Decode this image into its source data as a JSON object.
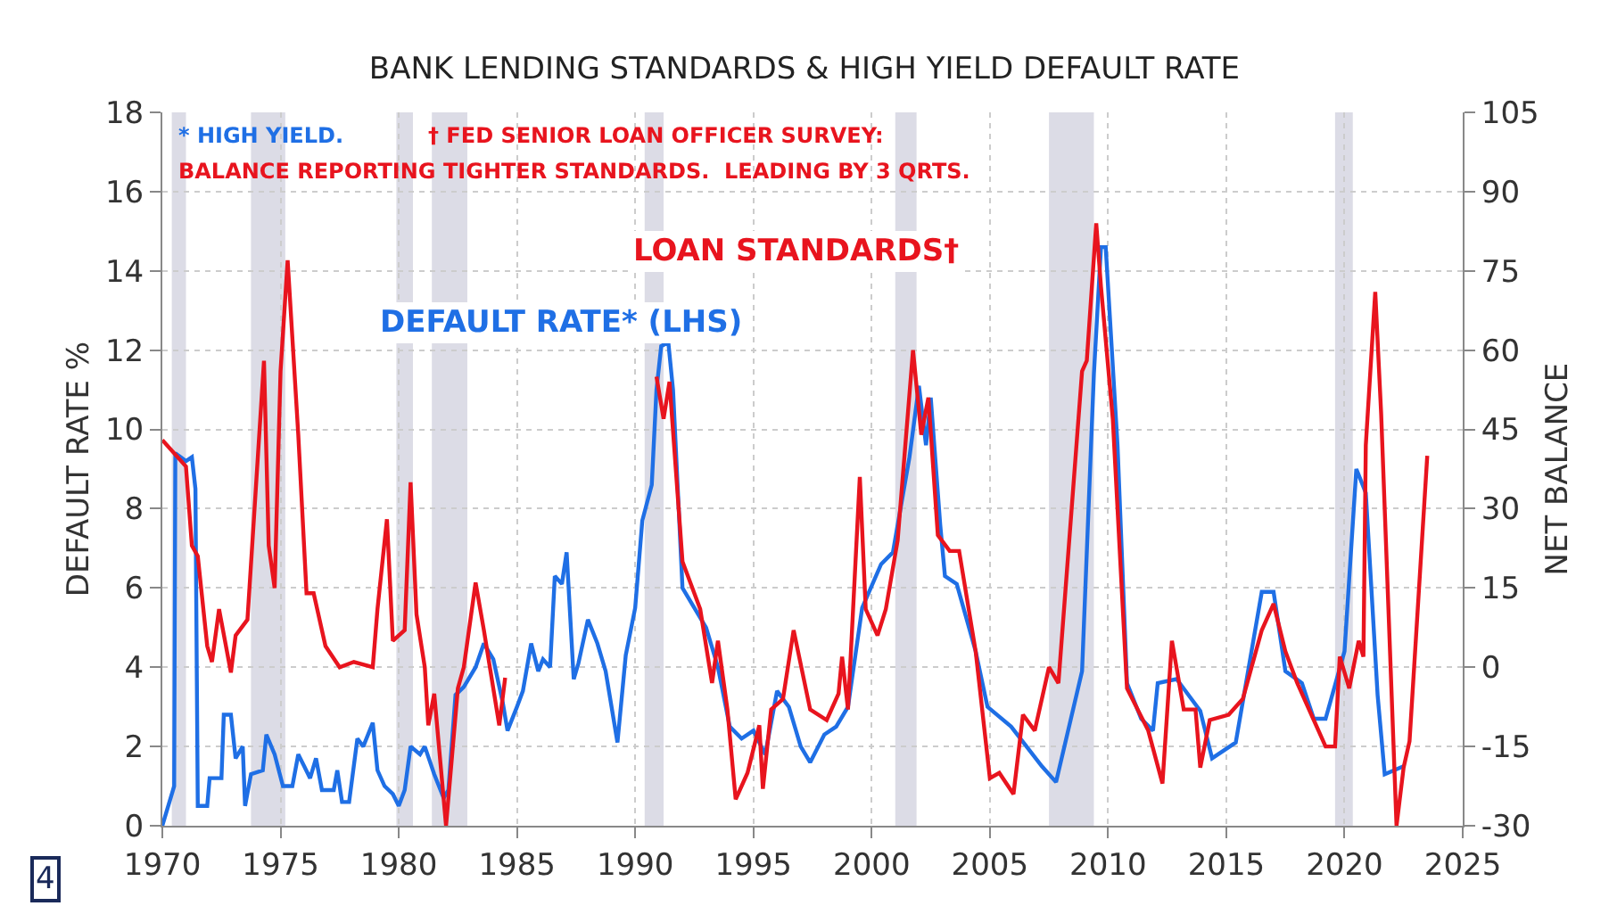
{
  "chart_data": {
    "type": "line",
    "title": "BANK LENDING STANDARDS & HIGH YIELD DEFAULT RATE",
    "ylabel": "DEFAULT RATE %",
    "y2label": "NET BALANCE",
    "xlim": [
      1970,
      2025
    ],
    "xticks": [
      1970,
      1975,
      1980,
      1985,
      1990,
      1995,
      2000,
      2005,
      2010,
      2015,
      2020,
      2025
    ],
    "ylim": [
      0,
      18
    ],
    "yticks": [
      0,
      2,
      4,
      6,
      8,
      10,
      12,
      14,
      16,
      18
    ],
    "y2lim": [
      -30,
      105
    ],
    "y2ticks": [
      -30,
      -15,
      0,
      15,
      30,
      45,
      60,
      75,
      90,
      105
    ],
    "grid": true,
    "legend": false,
    "marker": "none",
    "line_style": "solid",
    "series": [
      {
        "name": "DEFAULT RATE* (LHS)",
        "color": "#1f6fe5",
        "x": [
          1970.0,
          1970.5,
          1970.55,
          1971.0,
          1971.25,
          1971.4,
          1971.5,
          1971.9,
          1972.0,
          1972.5,
          1972.6,
          1972.9,
          1973.1,
          1973.4,
          1973.5,
          1973.75,
          1974.25,
          1974.4,
          1974.75,
          1975.1,
          1975.5,
          1975.75,
          1976.0,
          1976.25,
          1976.5,
          1976.75,
          1977.25,
          1977.4,
          1977.6,
          1977.9,
          1978.25,
          1978.5,
          1978.9,
          1979.1,
          1979.4,
          1979.75,
          1980.0,
          1980.25,
          1980.5,
          1980.9,
          1981.1,
          1981.5,
          1981.9,
          1982.1,
          1982.4,
          1982.75,
          1983.25,
          1983.6,
          1984.0,
          1984.4,
          1984.6,
          1985.0,
          1985.25,
          1985.6,
          1985.9,
          1986.1,
          1986.4,
          1986.6,
          1986.9,
          1987.1,
          1987.4,
          1987.6,
          1988.0,
          1988.4,
          1988.75,
          1989.25,
          1989.6,
          1990.0,
          1990.3,
          1990.7,
          1990.9,
          1991.1,
          1991.4,
          1991.6,
          1992.0,
          1992.5,
          1993.0,
          1993.5,
          1994.0,
          1994.5,
          1995.0,
          1995.5,
          1996.0,
          1996.5,
          1997.0,
          1997.4,
          1998.0,
          1998.5,
          1999.0,
          1999.6,
          2000.4,
          2000.9,
          2001.6,
          2002.0,
          2002.3,
          2002.5,
          2002.9,
          2003.1,
          2003.6,
          2004.4,
          2004.9,
          2005.9,
          2007.2,
          2007.8,
          2008.9,
          2009.4,
          2009.7,
          2009.9,
          2010.4,
          2010.8,
          2011.4,
          2011.9,
          2012.1,
          2012.9,
          2013.9,
          2014.4,
          2015.4,
          2016.5,
          2017.0,
          2017.5,
          2018.2,
          2018.7,
          2019.2,
          2020.0,
          2020.5,
          2020.9,
          2021.4,
          2021.7,
          2022.5
        ],
        "values": [
          0,
          1.0,
          9.4,
          9.2,
          9.3,
          8.5,
          0.5,
          0.5,
          1.2,
          1.2,
          2.8,
          2.8,
          1.7,
          2.0,
          0.5,
          1.3,
          1.4,
          2.3,
          1.8,
          1.0,
          1.0,
          1.8,
          1.5,
          1.2,
          1.7,
          0.9,
          0.9,
          1.4,
          0.6,
          0.6,
          2.2,
          2.0,
          2.6,
          1.4,
          1.0,
          0.8,
          0.5,
          0.9,
          2.0,
          1.8,
          2.0,
          1.3,
          0.7,
          0.9,
          3.3,
          3.5,
          4.0,
          4.6,
          4.2,
          3.1,
          2.4,
          3.0,
          3.4,
          4.6,
          3.9,
          4.2,
          4.0,
          6.3,
          6.1,
          6.9,
          3.7,
          4.1,
          5.2,
          4.6,
          3.9,
          2.1,
          4.3,
          5.5,
          7.7,
          8.6,
          11.0,
          12.1,
          12.2,
          11.0,
          6.0,
          5.5,
          5.0,
          4.0,
          2.5,
          2.2,
          2.4,
          1.8,
          3.4,
          3.0,
          2.0,
          1.6,
          2.3,
          2.5,
          3.0,
          5.5,
          6.6,
          6.9,
          9.3,
          11.1,
          9.6,
          10.8,
          7.6,
          6.3,
          6.1,
          4.4,
          3.0,
          2.5,
          1.5,
          1.1,
          3.9,
          11.4,
          14.6,
          14.6,
          9.6,
          3.6,
          2.7,
          2.4,
          3.6,
          3.7,
          2.9,
          1.7,
          2.1,
          5.9,
          5.9,
          3.9,
          3.6,
          2.7,
          2.7,
          4.4,
          9.0,
          8.4,
          3.3,
          1.3,
          1.5
        ]
      },
      {
        "name": "LOAN STANDARDS†",
        "color": "#e8141e",
        "axis": "y2",
        "x": [
          1970.0,
          1971.0,
          1971.25,
          1971.5,
          1971.9,
          1972.1,
          1972.4,
          1972.9,
          1973.1,
          1973.6,
          1974.3,
          1974.5,
          1974.75,
          1975.0,
          1975.3,
          1975.75,
          1976.1,
          1976.4,
          1976.9,
          1977.5,
          1978.1,
          1978.9,
          1979.1,
          1979.5,
          1979.75,
          1980.25,
          1980.5,
          1980.75,
          1981.1,
          1981.25,
          1981.5,
          1982.0,
          1982.5,
          1982.75,
          1983.25,
          1983.6,
          1984.25,
          1984.5,
          1984.6,
          1990.9,
          1991.2,
          1991.45,
          1992.0,
          1992.75,
          1993.25,
          1993.5,
          1993.9,
          1994.25,
          1994.75,
          1995.25,
          1995.4,
          1995.75,
          1996.25,
          1996.7,
          1997.4,
          1998.1,
          1998.6,
          1998.75,
          1999.0,
          1999.5,
          1999.75,
          2000.25,
          2000.6,
          2001.1,
          2001.75,
          2002.1,
          2002.4,
          2002.8,
          2003.3,
          2003.7,
          2004.4,
          2005.0,
          2005.4,
          2006.0,
          2006.4,
          2006.9,
          2007.5,
          2007.9,
          2008.9,
          2009.1,
          2009.5,
          2009.7,
          2010.2,
          2010.8,
          2011.7,
          2012.3,
          2012.7,
          2013.2,
          2013.7,
          2013.9,
          2014.3,
          2015.1,
          2015.7,
          2016.5,
          2017.0,
          2017.5,
          2018.0,
          2018.7,
          2019.2,
          2019.6,
          2019.8,
          2020.2,
          2020.6,
          2020.8,
          2020.9,
          2021.3,
          2021.55,
          2022.2,
          2022.5,
          2022.75,
          2023.5
        ],
        "values": [
          43,
          38,
          23,
          21,
          4,
          1,
          11,
          -1,
          6,
          9,
          58,
          23,
          15,
          56,
          77,
          44,
          14,
          14,
          4,
          0,
          1,
          0,
          11,
          28,
          5,
          7,
          35,
          10,
          0,
          -11,
          -5,
          -30,
          -4,
          0,
          16,
          7,
          -11,
          -2,
          null,
          55,
          47,
          54,
          20,
          11,
          -3,
          5,
          -8,
          -25,
          -20,
          -11,
          -23,
          -8,
          -6,
          7,
          -8,
          -10,
          -5,
          2,
          -8,
          36,
          11,
          6,
          11,
          24,
          60,
          44,
          51,
          25,
          22,
          22,
          3,
          -21,
          -20,
          -24,
          -9,
          -12,
          0,
          -3,
          56,
          58,
          84,
          72,
          47,
          -4,
          -12,
          -22,
          5,
          -8,
          -8,
          -19,
          -10,
          -9,
          -6,
          7,
          12,
          3,
          -3,
          -10,
          -15,
          -15,
          2,
          -4,
          5,
          2,
          42,
          71,
          48,
          -30,
          -19,
          -14,
          40
        ]
      }
    ],
    "bands": [
      {
        "axis": "x",
        "from": 1970.4,
        "to": 1971.0,
        "color": "#dcdce6"
      },
      {
        "axis": "x",
        "from": 1973.75,
        "to": 1975.2,
        "color": "#dcdce6"
      },
      {
        "axis": "x",
        "from": 1979.9,
        "to": 1980.6,
        "color": "#dcdce6"
      },
      {
        "axis": "x",
        "from": 1981.4,
        "to": 1982.9,
        "color": "#dcdce6"
      },
      {
        "axis": "x",
        "from": 1990.4,
        "to": 1991.2,
        "color": "#dcdce6"
      },
      {
        "axis": "x",
        "from": 2001.0,
        "to": 2001.9,
        "color": "#dcdce6"
      },
      {
        "axis": "x",
        "from": 2007.5,
        "to": 2009.4,
        "color": "#dcdce6"
      },
      {
        "axis": "x",
        "from": 2019.6,
        "to": 2020.35,
        "color": "#dcdce6"
      }
    ],
    "annotations": [
      "* HIGH YIELD.",
      "† FED SENIOR LOAN OFFICER SURVEY:",
      "BALANCE REPORTING TIGHTER STANDARDS.  LEADING BY 3 QRTS.",
      "4"
    ]
  }
}
